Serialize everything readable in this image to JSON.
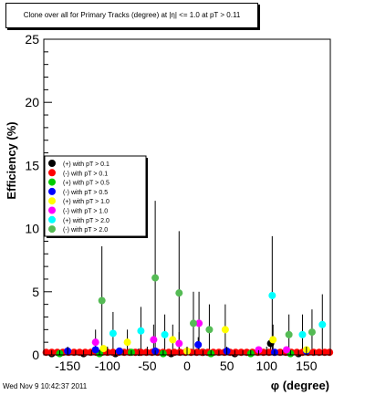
{
  "title": "Clone  over all for Primary Tracks (degree) at |η| <= 1.0 at pT > 0.11",
  "footer": "Wed Nov  9 10:42:37 2011",
  "chart_data": {
    "type": "scatter",
    "title": "Clone  over all for Primary Tracks (degree) at |η| <= 1.0 at pT > 0.11",
    "xlabel": "φ (degree)",
    "ylabel": "Efficiency (%)",
    "xlim": [
      -180,
      180
    ],
    "ylim": [
      0,
      25
    ],
    "x_ticks": [
      -150,
      -100,
      -50,
      0,
      50,
      100,
      150
    ],
    "y_ticks": [
      0,
      5,
      10,
      15,
      20,
      25
    ],
    "grid": false,
    "legend_position": "middle-left",
    "series": [
      {
        "name": "(+) with pT > 0.1",
        "color": "#000000",
        "points": [
          {
            "x": -170,
            "y": 0.1
          },
          {
            "x": -130,
            "y": 0.1
          },
          {
            "x": -90,
            "y": 0.1
          },
          {
            "x": -60,
            "y": 0.2
          },
          {
            "x": -20,
            "y": 0.1
          },
          {
            "x": 20,
            "y": 0.2
          },
          {
            "x": 60,
            "y": 0.1
          },
          {
            "x": 105,
            "y": 0.9,
            "err": 0.5
          },
          {
            "x": 140,
            "y": 0.1
          }
        ]
      },
      {
        "name": "(-) with pT > 0.1",
        "color": "#ff0000",
        "points": [
          {
            "x": -177,
            "y": 0.2
          },
          {
            "x": -170,
            "y": 0.2
          },
          {
            "x": -163,
            "y": 0.2
          },
          {
            "x": -156,
            "y": 0.2
          },
          {
            "x": -149,
            "y": 0.2
          },
          {
            "x": -142,
            "y": 0.2
          },
          {
            "x": -135,
            "y": 0.2
          },
          {
            "x": -128,
            "y": 0.2
          },
          {
            "x": -121,
            "y": 0.2
          },
          {
            "x": -114,
            "y": 0.2
          },
          {
            "x": -107,
            "y": 0.2
          },
          {
            "x": -100,
            "y": 0.2
          },
          {
            "x": -93,
            "y": 0.2
          },
          {
            "x": -86,
            "y": 0.2
          },
          {
            "x": -79,
            "y": 0.2
          },
          {
            "x": -72,
            "y": 0.2
          },
          {
            "x": -65,
            "y": 0.2
          },
          {
            "x": -58,
            "y": 0.2
          },
          {
            "x": -51,
            "y": 0.2
          },
          {
            "x": -44,
            "y": 0.2
          },
          {
            "x": -37,
            "y": 0.2
          },
          {
            "x": -30,
            "y": 0.2
          },
          {
            "x": -23,
            "y": 0.2
          },
          {
            "x": -16,
            "y": 0.2
          },
          {
            "x": -9,
            "y": 0.2
          },
          {
            "x": -2,
            "y": 0.2
          },
          {
            "x": 5,
            "y": 0.2
          },
          {
            "x": 12,
            "y": 0.2
          },
          {
            "x": 19,
            "y": 0.2
          },
          {
            "x": 26,
            "y": 0.2
          },
          {
            "x": 33,
            "y": 0.2
          },
          {
            "x": 40,
            "y": 0.2
          },
          {
            "x": 47,
            "y": 0.2
          },
          {
            "x": 54,
            "y": 0.2
          },
          {
            "x": 61,
            "y": 0.2
          },
          {
            "x": 68,
            "y": 0.2
          },
          {
            "x": 75,
            "y": 0.2
          },
          {
            "x": 82,
            "y": 0.2
          },
          {
            "x": 89,
            "y": 0.2
          },
          {
            "x": 96,
            "y": 0.2
          },
          {
            "x": 103,
            "y": 0.2
          },
          {
            "x": 110,
            "y": 0.2
          },
          {
            "x": 117,
            "y": 0.2
          },
          {
            "x": 124,
            "y": 0.2
          },
          {
            "x": 131,
            "y": 0.2
          },
          {
            "x": 138,
            "y": 0.2
          },
          {
            "x": 145,
            "y": 0.2
          },
          {
            "x": 152,
            "y": 0.2
          },
          {
            "x": 159,
            "y": 0.2
          },
          {
            "x": 166,
            "y": 0.2
          },
          {
            "x": 173,
            "y": 0.2
          },
          {
            "x": 179,
            "y": 0.2
          }
        ]
      },
      {
        "name": "(+) with pT > 0.5",
        "color": "#00cc00",
        "points": [
          {
            "x": -160,
            "y": 0.1
          },
          {
            "x": -110,
            "y": 0.1
          },
          {
            "x": -70,
            "y": 0.2
          },
          {
            "x": -30,
            "y": 0.1
          },
          {
            "x": 30,
            "y": 0.1
          },
          {
            "x": 80,
            "y": 0.1
          },
          {
            "x": 130,
            "y": 0.1
          }
        ]
      },
      {
        "name": "(-) with pT > 0.5",
        "color": "#0000ff",
        "points": [
          {
            "x": -150,
            "y": 0.3
          },
          {
            "x": -115,
            "y": 0.4
          },
          {
            "x": -85,
            "y": 0.3
          },
          {
            "x": -40,
            "y": 0.3
          },
          {
            "x": 14,
            "y": 0.8,
            "err": 0.6
          },
          {
            "x": 50,
            "y": 0.3
          },
          {
            "x": 110,
            "y": 0.2
          },
          {
            "x": 150,
            "y": 0.3
          }
        ]
      },
      {
        "name": "(+) with pT > 1.0",
        "color": "#ffff00",
        "points": [
          {
            "x": -105,
            "y": 0.5
          },
          {
            "x": -75,
            "y": 1.0,
            "err": 1.0
          },
          {
            "x": -18,
            "y": 1.2,
            "err": 1.2
          },
          {
            "x": 0,
            "y": 0.3
          },
          {
            "x": 48,
            "y": 2.0,
            "err": 2.0
          },
          {
            "x": 108,
            "y": 1.2,
            "err": 1.2
          },
          {
            "x": 150,
            "y": 0.4
          }
        ]
      },
      {
        "name": "(-) with pT > 1.0",
        "color": "#ff00ff",
        "points": [
          {
            "x": -115,
            "y": 1.0,
            "err": 1.0
          },
          {
            "x": -42,
            "y": 1.2,
            "err": 1.2
          },
          {
            "x": -10,
            "y": 0.9,
            "err": 0.9
          },
          {
            "x": 15,
            "y": 2.5,
            "err": 2.5
          },
          {
            "x": 90,
            "y": 0.4
          },
          {
            "x": 125,
            "y": 0.4
          }
        ]
      },
      {
        "name": "(+) with pT > 2.0",
        "color": "#00ffff",
        "points": [
          {
            "x": -93,
            "y": 1.7,
            "err": 1.7
          },
          {
            "x": -58,
            "y": 1.9,
            "err": 1.9
          },
          {
            "x": -28,
            "y": 1.6,
            "err": 1.6
          },
          {
            "x": 107,
            "y": 4.7,
            "err": 4.7
          },
          {
            "x": 145,
            "y": 1.6,
            "err": 1.6
          },
          {
            "x": 170,
            "y": 2.4,
            "err": 2.4
          }
        ]
      },
      {
        "name": "(-) with pT > 2.0",
        "color": "#55bb55",
        "points": [
          {
            "x": -107,
            "y": 4.3,
            "err": 4.3
          },
          {
            "x": -40,
            "y": 6.1,
            "err": 6.1
          },
          {
            "x": -10,
            "y": 4.9,
            "err": 4.9
          },
          {
            "x": 8,
            "y": 2.5,
            "err": 2.5
          },
          {
            "x": 28,
            "y": 2.0,
            "err": 2.0
          },
          {
            "x": 128,
            "y": 1.6,
            "err": 1.6
          },
          {
            "x": 157,
            "y": 1.8,
            "err": 1.8
          }
        ]
      }
    ]
  }
}
